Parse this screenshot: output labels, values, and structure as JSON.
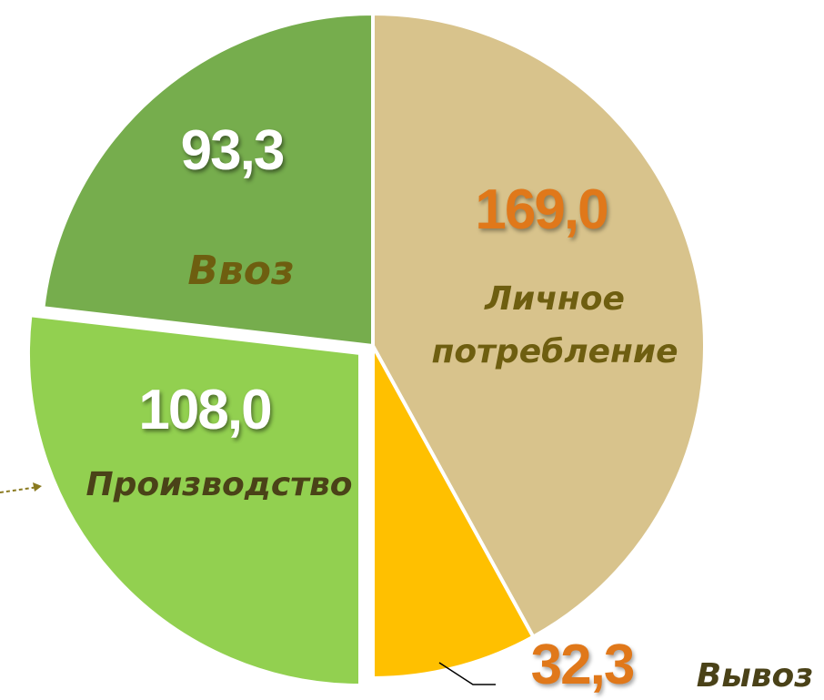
{
  "chart_data": {
    "type": "pie",
    "categories": [
      "Личное потребление",
      "Вывоз",
      "Производство",
      "Ввоз"
    ],
    "values": [
      169.0,
      32.3,
      108.0,
      93.3
    ],
    "value_labels": [
      "169,0",
      "32,3",
      "108,0",
      "93,3"
    ],
    "colors": [
      "#d8c38c",
      "#ffc000",
      "#92d050",
      "#76ad4d"
    ]
  }
}
